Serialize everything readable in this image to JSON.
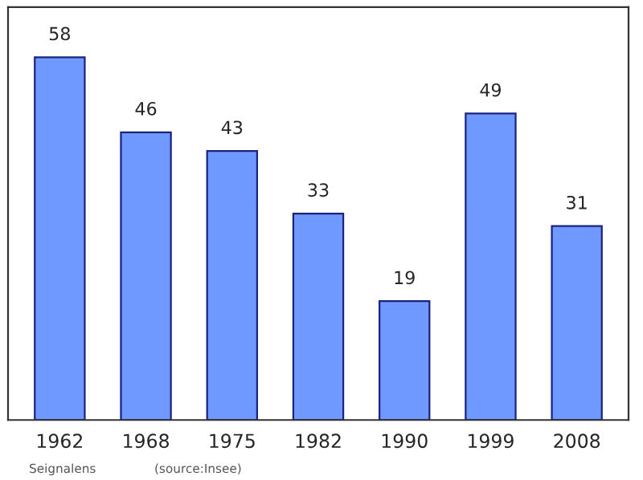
{
  "chart_data": {
    "type": "bar",
    "categories": [
      "1962",
      "1968",
      "1975",
      "1982",
      "1990",
      "1999",
      "2008"
    ],
    "values": [
      58,
      46,
      43,
      33,
      19,
      49,
      31
    ],
    "color": "#7099ff",
    "ylim": [
      0,
      66
    ],
    "data_labels": true,
    "grid": false,
    "annotations": [
      "Seignalens",
      "(source:Insee)"
    ]
  }
}
